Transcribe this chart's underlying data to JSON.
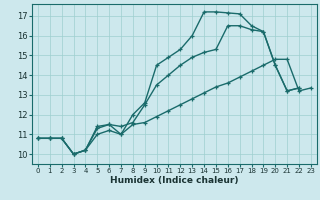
{
  "xlabel": "Humidex (Indice chaleur)",
  "xlim": [
    -0.5,
    23.5
  ],
  "ylim": [
    9.5,
    17.6
  ],
  "yticks": [
    10,
    11,
    12,
    13,
    14,
    15,
    16,
    17
  ],
  "xticks": [
    0,
    1,
    2,
    3,
    4,
    5,
    6,
    7,
    8,
    9,
    10,
    11,
    12,
    13,
    14,
    15,
    16,
    17,
    18,
    19,
    20,
    21,
    22,
    23
  ],
  "bg_color": "#cde8ed",
  "grid_color": "#9ecfcf",
  "line_color": "#1a6b6b",
  "line1_x": [
    0,
    1,
    2,
    3,
    4,
    5,
    6,
    7,
    8,
    9,
    10,
    11,
    12,
    13,
    14,
    15,
    16,
    17,
    18,
    19,
    20,
    21,
    22,
    23
  ],
  "line1_y": [
    10.8,
    10.8,
    10.8,
    10.0,
    10.2,
    11.4,
    11.5,
    11.0,
    12.0,
    12.6,
    14.5,
    14.9,
    15.3,
    16.0,
    17.2,
    17.2,
    17.15,
    17.1,
    16.5,
    16.2,
    14.5,
    13.2,
    13.35,
    null
  ],
  "line2_x": [
    0,
    1,
    2,
    3,
    4,
    5,
    6,
    7,
    8,
    9,
    10,
    11,
    12,
    13,
    14,
    15,
    16,
    17,
    18,
    19,
    20,
    21,
    22,
    23
  ],
  "line2_y": [
    10.8,
    10.8,
    10.8,
    10.0,
    10.2,
    11.3,
    11.5,
    11.4,
    11.6,
    12.5,
    13.5,
    14.0,
    14.5,
    14.9,
    15.15,
    15.3,
    16.5,
    16.5,
    16.3,
    16.2,
    14.5,
    13.2,
    13.35,
    null
  ],
  "line3_x": [
    0,
    1,
    2,
    3,
    4,
    5,
    6,
    7,
    8,
    9,
    10,
    11,
    12,
    13,
    14,
    15,
    16,
    17,
    18,
    19,
    20,
    21,
    22,
    23
  ],
  "line3_y": [
    10.8,
    10.8,
    10.8,
    10.0,
    10.2,
    11.0,
    11.2,
    11.0,
    11.5,
    11.6,
    11.9,
    12.2,
    12.5,
    12.8,
    13.1,
    13.4,
    13.6,
    13.9,
    14.2,
    14.5,
    14.8,
    14.8,
    13.2,
    13.35
  ]
}
